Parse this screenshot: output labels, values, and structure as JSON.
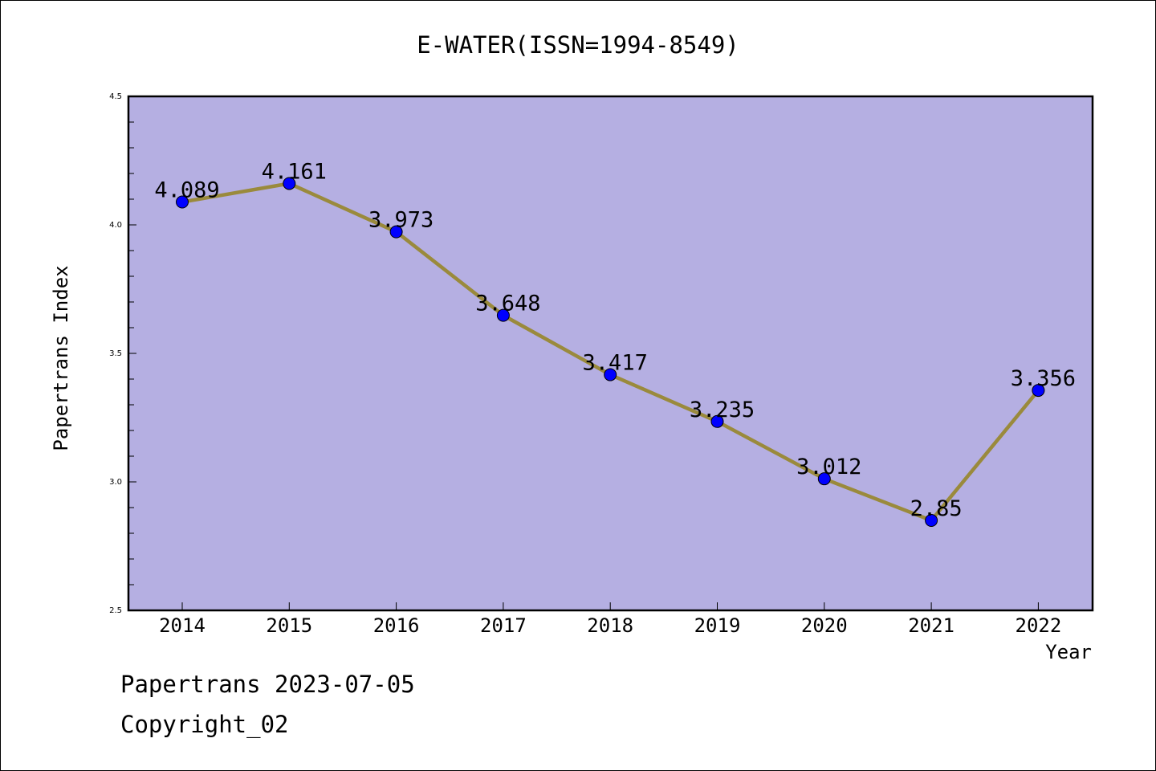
{
  "chart_data": {
    "type": "line",
    "title": "E-WATER(ISSN=1994-8549)",
    "xlabel": "Year",
    "ylabel": "Papertrans Index",
    "x": [
      "2014",
      "2015",
      "2016",
      "2017",
      "2018",
      "2019",
      "2020",
      "2021",
      "2022"
    ],
    "values": [
      4.089,
      4.161,
      3.973,
      3.648,
      3.417,
      3.235,
      3.012,
      2.85,
      3.356
    ],
    "value_labels": [
      "4.089",
      "4.161",
      "3.973",
      "3.648",
      "3.417",
      "3.235",
      "3.012",
      "2.85",
      "3.356"
    ],
    "ylim": [
      2.5,
      4.5
    ],
    "y_ticks": [
      "2.5",
      "3.0",
      "3.5",
      "4.0",
      "4.5"
    ],
    "y_tick_values": [
      2.5,
      3.0,
      3.5,
      4.0,
      4.5
    ],
    "grid": false,
    "colors": {
      "plot_background": "#b5afe2",
      "line": "#9a8a3c",
      "marker": "#0000ff"
    }
  },
  "footer": {
    "line1": "Papertrans 2023-07-05",
    "line2": "Copyright_02"
  }
}
